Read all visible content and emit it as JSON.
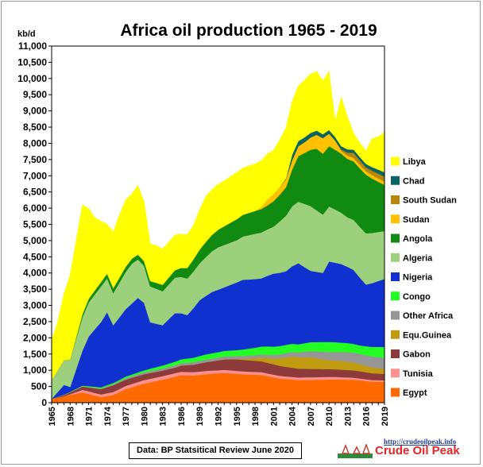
{
  "chart_data": {
    "type": "area",
    "stacked": true,
    "title": "Africa oil production 1965 - 2019",
    "ylabel": "kb/d",
    "ylim": [
      0,
      11000
    ],
    "yticks": [
      0,
      500,
      1000,
      1500,
      2000,
      2500,
      3000,
      3500,
      4000,
      4500,
      5000,
      5500,
      6000,
      6500,
      7000,
      7500,
      8000,
      8500,
      9000,
      9500,
      10000,
      10500,
      11000
    ],
    "ytick_labels": [
      "0",
      "500",
      "1,000",
      "1,500",
      "2,000",
      "2,500",
      "3,000",
      "3,500",
      "4,000",
      "4,500",
      "5,000",
      "5,500",
      "6,000",
      "6,500",
      "7,000",
      "7,500",
      "8,000",
      "8,500",
      "9,000",
      "9,500",
      "10,000",
      "10,500",
      "11,000"
    ],
    "x_start": 1965,
    "x_end": 2019,
    "xtick_labels": [
      "1965",
      "1968",
      "1971",
      "1974",
      "1977",
      "1980",
      "1983",
      "1986",
      "1989",
      "1992",
      "1995",
      "1998",
      "2001",
      "2004",
      "2007",
      "2010",
      "2013",
      "2016",
      "2019"
    ],
    "grid": false,
    "legend_position": "right",
    "series": [
      {
        "name": "Egypt",
        "color": "#ff6a00",
        "points": [
          [
            1965,
            120
          ],
          [
            1970,
            320
          ],
          [
            1973,
            170
          ],
          [
            1975,
            240
          ],
          [
            1977,
            420
          ],
          [
            1980,
            590
          ],
          [
            1983,
            710
          ],
          [
            1986,
            850
          ],
          [
            1988,
            840
          ],
          [
            1990,
            880
          ],
          [
            1993,
            920
          ],
          [
            1996,
            880
          ],
          [
            1999,
            860
          ],
          [
            2002,
            750
          ],
          [
            2005,
            700
          ],
          [
            2008,
            710
          ],
          [
            2011,
            720
          ],
          [
            2014,
            710
          ],
          [
            2017,
            650
          ],
          [
            2019,
            650
          ]
        ]
      },
      {
        "name": "Tunisia",
        "color": "#ff9090",
        "points": [
          [
            1965,
            0
          ],
          [
            1967,
            0
          ],
          [
            1968,
            20
          ],
          [
            1970,
            80
          ],
          [
            1975,
            90
          ],
          [
            1980,
            110
          ],
          [
            1985,
            110
          ],
          [
            1990,
            100
          ],
          [
            1995,
            90
          ],
          [
            2000,
            80
          ],
          [
            2005,
            80
          ],
          [
            2010,
            80
          ],
          [
            2015,
            60
          ],
          [
            2019,
            40
          ]
        ]
      },
      {
        "name": "Gabon",
        "color": "#8c3a3a",
        "points": [
          [
            1965,
            0
          ],
          [
            1966,
            20
          ],
          [
            1970,
            100
          ],
          [
            1975,
            210
          ],
          [
            1980,
            180
          ],
          [
            1985,
            170
          ],
          [
            1990,
            270
          ],
          [
            1995,
            360
          ],
          [
            2000,
            330
          ],
          [
            2005,
            270
          ],
          [
            2010,
            240
          ],
          [
            2015,
            220
          ],
          [
            2019,
            200
          ]
        ]
      },
      {
        "name": "Equ.Guinea",
        "color": "#c09a10",
        "points": [
          [
            1965,
            0
          ],
          [
            1992,
            0
          ],
          [
            1995,
            10
          ],
          [
            1998,
            80
          ],
          [
            2001,
            180
          ],
          [
            2004,
            350
          ],
          [
            2007,
            360
          ],
          [
            2010,
            280
          ],
          [
            2013,
            260
          ],
          [
            2016,
            200
          ],
          [
            2019,
            150
          ]
        ]
      },
      {
        "name": "Other Africa",
        "color": "#969696",
        "points": [
          [
            1965,
            0
          ],
          [
            1970,
            10
          ],
          [
            1975,
            30
          ],
          [
            1980,
            60
          ],
          [
            1985,
            70
          ],
          [
            1990,
            80
          ],
          [
            1995,
            90
          ],
          [
            2000,
            100
          ],
          [
            2005,
            150
          ],
          [
            2010,
            250
          ],
          [
            2015,
            320
          ],
          [
            2019,
            350
          ]
        ]
      },
      {
        "name": "Congo",
        "color": "#22ff22",
        "points": [
          [
            1965,
            0
          ],
          [
            1970,
            20
          ],
          [
            1975,
            40
          ],
          [
            1980,
            60
          ],
          [
            1985,
            110
          ],
          [
            1990,
            160
          ],
          [
            1995,
            180
          ],
          [
            2000,
            260
          ],
          [
            2005,
            250
          ],
          [
            2010,
            310
          ],
          [
            2015,
            260
          ],
          [
            2019,
            330
          ]
        ]
      },
      {
        "name": "Nigeria",
        "color": "#1030d0",
        "points": [
          [
            1965,
            0
          ],
          [
            1967,
            300
          ],
          [
            1968,
            150
          ],
          [
            1970,
            1080
          ],
          [
            1971,
            1530
          ],
          [
            1974,
            2250
          ],
          [
            1975,
            1780
          ],
          [
            1977,
            2080
          ],
          [
            1979,
            2300
          ],
          [
            1980,
            2080
          ],
          [
            1981,
            1430
          ],
          [
            1983,
            1240
          ],
          [
            1985,
            1500
          ],
          [
            1987,
            1340
          ],
          [
            1989,
            1720
          ],
          [
            1991,
            1890
          ],
          [
            1993,
            1960
          ],
          [
            1996,
            2150
          ],
          [
            1999,
            2100
          ],
          [
            2001,
            2250
          ],
          [
            2003,
            2270
          ],
          [
            2005,
            2500
          ],
          [
            2007,
            2200
          ],
          [
            2009,
            2130
          ],
          [
            2010,
            2480
          ],
          [
            2012,
            2420
          ],
          [
            2014,
            2280
          ],
          [
            2016,
            1900
          ],
          [
            2019,
            2100
          ]
        ]
      },
      {
        "name": "Algeria",
        "color": "#9cd07c",
        "points": [
          [
            1965,
            580
          ],
          [
            1970,
            1030
          ],
          [
            1973,
            1100
          ],
          [
            1975,
            990
          ],
          [
            1978,
            1230
          ],
          [
            1980,
            1140
          ],
          [
            1983,
            1050
          ],
          [
            1986,
            1120
          ],
          [
            1989,
            1140
          ],
          [
            1992,
            1310
          ],
          [
            1995,
            1300
          ],
          [
            1998,
            1400
          ],
          [
            2001,
            1450
          ],
          [
            2004,
            1850
          ],
          [
            2007,
            2000
          ],
          [
            2010,
            1700
          ],
          [
            2013,
            1530
          ],
          [
            2016,
            1580
          ],
          [
            2019,
            1480
          ]
        ]
      },
      {
        "name": "Angola",
        "color": "#108a10",
        "points": [
          [
            1965,
            0
          ],
          [
            1968,
            0
          ],
          [
            1970,
            100
          ],
          [
            1975,
            160
          ],
          [
            1980,
            150
          ],
          [
            1985,
            230
          ],
          [
            1990,
            470
          ],
          [
            1995,
            650
          ],
          [
            2000,
            740
          ],
          [
            2003,
            870
          ],
          [
            2005,
            1400
          ],
          [
            2008,
            1900
          ],
          [
            2010,
            1860
          ],
          [
            2013,
            1800
          ],
          [
            2016,
            1810
          ],
          [
            2019,
            1420
          ]
        ]
      },
      {
        "name": "Sudan",
        "color": "#ffc000",
        "points": [
          [
            1965,
            0
          ],
          [
            1998,
            0
          ],
          [
            1999,
            60
          ],
          [
            2000,
            180
          ],
          [
            2003,
            260
          ],
          [
            2006,
            330
          ],
          [
            2009,
            480
          ],
          [
            2011,
            290
          ],
          [
            2012,
            90
          ],
          [
            2015,
            110
          ],
          [
            2019,
            100
          ]
        ]
      },
      {
        "name": "South Sudan",
        "color": "#b8860b",
        "points": [
          [
            1965,
            0
          ],
          [
            2010,
            0
          ],
          [
            2011,
            0
          ],
          [
            2012,
            40
          ],
          [
            2014,
            160
          ],
          [
            2016,
            120
          ],
          [
            2019,
            160
          ]
        ]
      },
      {
        "name": "Chad",
        "color": "#0a6464",
        "points": [
          [
            1965,
            0
          ],
          [
            2002,
            0
          ],
          [
            2003,
            20
          ],
          [
            2004,
            170
          ],
          [
            2006,
            150
          ],
          [
            2009,
            120
          ],
          [
            2012,
            100
          ],
          [
            2015,
            100
          ],
          [
            2019,
            130
          ]
        ]
      },
      {
        "name": "Libya",
        "color": "#ffff00",
        "points": [
          [
            1965,
            1220
          ],
          [
            1966,
            1500
          ],
          [
            1968,
            2600
          ],
          [
            1970,
            3360
          ],
          [
            1971,
            2780
          ],
          [
            1972,
            2240
          ],
          [
            1974,
            1520
          ],
          [
            1976,
            1930
          ],
          [
            1977,
            2060
          ],
          [
            1978,
            1990
          ],
          [
            1979,
            2130
          ],
          [
            1980,
            1830
          ],
          [
            1981,
            1140
          ],
          [
            1982,
            1150
          ],
          [
            1983,
            1100
          ],
          [
            1985,
            1080
          ],
          [
            1987,
            1020
          ],
          [
            1988,
            1040
          ],
          [
            1990,
            1400
          ],
          [
            1993,
            1400
          ],
          [
            1995,
            1440
          ],
          [
            1998,
            1450
          ],
          [
            2000,
            1410
          ],
          [
            2001,
            1360
          ],
          [
            2004,
            1640
          ],
          [
            2007,
            1820
          ],
          [
            2008,
            1820
          ],
          [
            2009,
            1650
          ],
          [
            2010,
            1800
          ],
          [
            2011,
            480
          ],
          [
            2012,
            1510
          ],
          [
            2013,
            990
          ],
          [
            2014,
            500
          ],
          [
            2015,
            430
          ],
          [
            2016,
            400
          ],
          [
            2017,
            870
          ],
          [
            2018,
            1010
          ],
          [
            2019,
            1230
          ]
        ]
      }
    ],
    "legend_order": [
      "Libya",
      "Chad",
      "South Sudan",
      "Sudan",
      "Angola",
      "Algeria",
      "Nigeria",
      "Congo",
      "Other Africa",
      "Equ.Guinea",
      "Gabon",
      "Tunisia",
      "Egypt"
    ]
  },
  "footer": {
    "source": "Data:  BP Statsitical  Review June 2020",
    "brand_url": "http://crudeoilpeak.info",
    "brand_name": "Crude Oil Peak"
  }
}
